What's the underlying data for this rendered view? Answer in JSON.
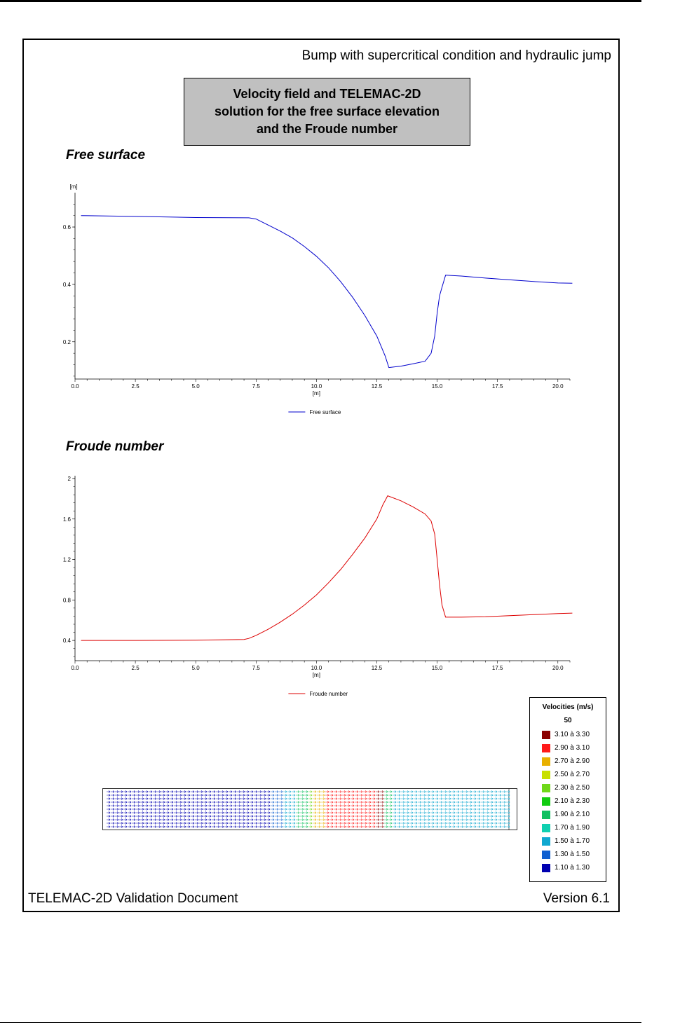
{
  "document": {
    "title": "Bump with supercritical condition and hydraulic jump",
    "caption_lines": [
      "Velocity field and TELEMAC-2D",
      "solution for the free surface elevation",
      "and the Froude number"
    ],
    "footer_left": "TELEMAC-2D Validation Document",
    "footer_right": "Version 6.1"
  },
  "colors": {
    "free_surface_line": "#0000cc",
    "froude_line": "#dd0000",
    "caption_background": "#c0c0c0"
  },
  "chart_data": [
    {
      "type": "line",
      "title": "Free surface",
      "xlabel": "[m]",
      "ylabel": "[m]",
      "xlim": [
        0,
        20.5
      ],
      "ylim": [
        0.07,
        0.71
      ],
      "xticks": [
        "0.0",
        "2.5",
        "5.0",
        "7.5",
        "10.0",
        "12.5",
        "15.0",
        "17.5",
        "20.0"
      ],
      "yticks": [
        "0.2",
        "0.4",
        "0.6"
      ],
      "grid": false,
      "legend_position": "bottom-center",
      "series": [
        {
          "name": "Free surface",
          "x": [
            0.25,
            2.5,
            5.0,
            7.2,
            7.5,
            8.0,
            8.5,
            9.0,
            9.5,
            10.0,
            10.5,
            11.0,
            11.5,
            12.0,
            12.5,
            12.85,
            13.0,
            13.5,
            14.0,
            14.5,
            14.75,
            14.9,
            15.0,
            15.1,
            15.2,
            15.35,
            16.0,
            17.0,
            18.0,
            19.0,
            20.0,
            20.6
          ],
          "y": [
            0.64,
            0.637,
            0.633,
            0.632,
            0.628,
            0.607,
            0.586,
            0.562,
            0.532,
            0.498,
            0.458,
            0.41,
            0.355,
            0.292,
            0.22,
            0.15,
            0.11,
            0.115,
            0.123,
            0.132,
            0.16,
            0.22,
            0.3,
            0.36,
            0.39,
            0.432,
            0.429,
            0.422,
            0.416,
            0.41,
            0.405,
            0.404
          ]
        }
      ]
    },
    {
      "type": "line",
      "title": "Froude number",
      "xlabel": "[m]",
      "xlim": [
        0,
        20.5
      ],
      "ylim": [
        0.2,
        2.0
      ],
      "xticks": [
        "0.0",
        "2.5",
        "5.0",
        "7.5",
        "10.0",
        "12.5",
        "15.0",
        "17.5",
        "20.0"
      ],
      "yticks": [
        "0.4",
        "0.8",
        "1.2",
        "1.6",
        "2"
      ],
      "grid": false,
      "legend_position": "bottom-center",
      "series": [
        {
          "name": "Froude number",
          "x": [
            0.25,
            2.5,
            5.0,
            7.0,
            7.2,
            7.5,
            8.0,
            8.5,
            9.0,
            9.5,
            10.0,
            10.5,
            11.0,
            11.5,
            12.0,
            12.5,
            12.75,
            12.95,
            13.5,
            14.0,
            14.5,
            14.75,
            14.9,
            15.0,
            15.1,
            15.2,
            15.35,
            16.0,
            17.0,
            18.0,
            19.0,
            20.0,
            20.6
          ],
          "y": [
            0.4,
            0.4,
            0.402,
            0.41,
            0.42,
            0.45,
            0.51,
            0.58,
            0.66,
            0.75,
            0.85,
            0.97,
            1.1,
            1.25,
            1.41,
            1.6,
            1.74,
            1.83,
            1.78,
            1.72,
            1.65,
            1.58,
            1.45,
            1.2,
            0.95,
            0.75,
            0.63,
            0.63,
            0.635,
            0.645,
            0.655,
            0.665,
            0.67
          ]
        }
      ]
    }
  ],
  "velocity_legend": {
    "title": "Velocities (m/s)",
    "count": "50",
    "classes": [
      {
        "range": "3.10 à  3.30",
        "color": "#8b0000"
      },
      {
        "range": "2.90 à  3.10",
        "color": "#ff1a1a"
      },
      {
        "range": "2.70 à  2.90",
        "color": "#e8b000"
      },
      {
        "range": "2.50 à  2.70",
        "color": "#c8e000"
      },
      {
        "range": "2.30 à  2.50",
        "color": "#6fd81a"
      },
      {
        "range": "2.10 à  2.30",
        "color": "#11cc11"
      },
      {
        "range": "1.90 à  2.10",
        "color": "#10c060"
      },
      {
        "range": "1.70 à  1.90",
        "color": "#10d0b0"
      },
      {
        "range": "1.50 à  1.70",
        "color": "#10a8d0"
      },
      {
        "range": "1.30 à  1.50",
        "color": "#1060d0"
      },
      {
        "range": "1.10 à  1.30",
        "color": "#0000b0"
      }
    ]
  }
}
